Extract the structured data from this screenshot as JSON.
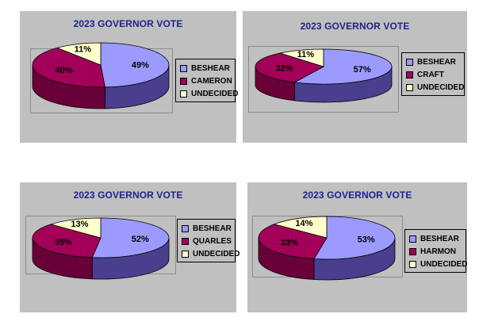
{
  "chart_data": [
    {
      "type": "pie",
      "title": "2023 GOVERNOR VOTE",
      "categories": [
        "BESHEAR",
        "CAMERON",
        "UNDECIDED"
      ],
      "values": [
        49,
        40,
        11
      ],
      "labels": [
        "49%",
        "40%",
        "11%"
      ],
      "colors": [
        "#9b9bff",
        "#a3005a",
        "#ffffcc"
      ],
      "legend": "right"
    },
    {
      "type": "pie",
      "title": "2023 GOVERNOR VOTE",
      "categories": [
        "BESHEAR",
        "CRAFT",
        "UNDECIDED"
      ],
      "values": [
        57,
        32,
        11
      ],
      "labels": [
        "57%",
        "32%",
        "11%"
      ],
      "colors": [
        "#9b9bff",
        "#a3005a",
        "#ffffcc"
      ],
      "legend": "right"
    },
    {
      "type": "pie",
      "title": "2023 GOVERNOR VOTE",
      "categories": [
        "BESHEAR",
        "QUARLES",
        "UNDECIDED"
      ],
      "values": [
        52,
        35,
        13
      ],
      "labels": [
        "52%",
        "35%",
        "13%"
      ],
      "colors": [
        "#9b9bff",
        "#a3005a",
        "#ffffcc"
      ],
      "legend": "right"
    },
    {
      "type": "pie",
      "title": "2023 GOVERNOR VOTE",
      "categories": [
        "BESHEAR",
        "HARMON",
        "UNDECIDED"
      ],
      "values": [
        53,
        33,
        14
      ],
      "labels": [
        "53%",
        "33%",
        "14%"
      ],
      "colors": [
        "#9b9bff",
        "#a3005a",
        "#ffffcc"
      ],
      "legend": "right"
    }
  ]
}
